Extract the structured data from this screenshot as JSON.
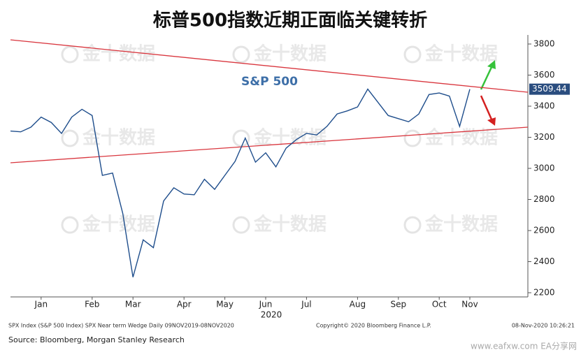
{
  "chart_data": {
    "type": "line",
    "title": "标普500指数近期正面临关键转折",
    "series_label": "S&P 500",
    "year_label": "2020",
    "watermark": "金十数据",
    "last_label": "3509.44",
    "footer_left": "SPX Index (S&P 500 Index) SPX Near term Wedge  Daily 09NOV2019-08NOV2020",
    "footer_mid": "Copyright© 2020 Bloomberg Finance L.P.",
    "footer_right": "08-Nov-2020 10:26:21",
    "source": "Source: Bloomberg, Morgan Stanley Research",
    "site": "www.eafxw.com   EA分享网",
    "categories": [
      null,
      null,
      null,
      "Jan",
      null,
      null,
      null,
      null,
      "Feb",
      null,
      null,
      null,
      "Mar",
      null,
      null,
      null,
      null,
      "Apr",
      null,
      null,
      null,
      "May",
      null,
      null,
      null,
      "Jun",
      null,
      null,
      null,
      "Jul",
      null,
      null,
      null,
      null,
      "Aug",
      null,
      null,
      null,
      "Sep",
      null,
      null,
      null,
      "Oct",
      null,
      null,
      "Nov"
    ],
    "series": [
      {
        "name": "SPX",
        "color": "#1f4e8c",
        "values": [
          3240,
          3235,
          3265,
          3330,
          3295,
          3225,
          3330,
          3380,
          3340,
          2955,
          2970,
          2710,
          2300,
          2540,
          2490,
          2790,
          2875,
          2835,
          2830,
          2930,
          2865,
          2955,
          3045,
          3195,
          3040,
          3100,
          3010,
          3130,
          3185,
          3225,
          3215,
          3270,
          3350,
          3370,
          3395,
          3510,
          3425,
          3340,
          3320,
          3300,
          3350,
          3475,
          3485,
          3465,
          3270,
          3509.44
        ]
      }
    ],
    "upper_trend": {
      "color": "#d9363e",
      "values": [
        3827,
        3490
      ]
    },
    "lower_trend": {
      "color": "#d9363e",
      "values": [
        3036,
        3265
      ]
    },
    "ylim": [
      2200,
      3800
    ],
    "yticks": [
      2200,
      2400,
      2600,
      2800,
      3000,
      3200,
      3400,
      3600,
      3800
    ]
  }
}
